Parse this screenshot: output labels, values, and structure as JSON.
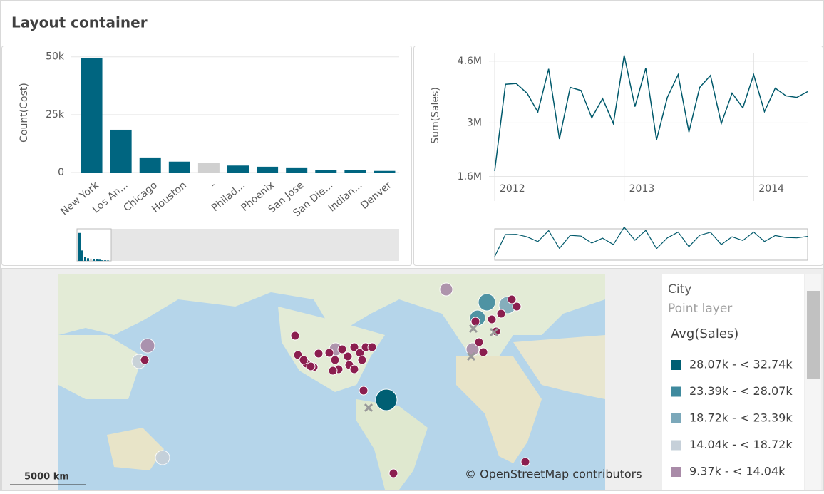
{
  "title": "Layout container",
  "chart_data": [
    {
      "type": "bar",
      "y_label": "Count(Cost)",
      "categories": [
        "New York",
        "Los An...",
        "Chicago",
        "Houston",
        "-",
        "Philad...",
        "Phoenix",
        "San Jose",
        "San Die...",
        "Indian...",
        "Denver"
      ],
      "values": [
        49500,
        18500,
        6500,
        4700,
        4000,
        3000,
        2500,
        2200,
        1100,
        1000,
        700
      ],
      "colors": [
        "#006580",
        "#006580",
        "#006580",
        "#006580",
        "#d0d0d0",
        "#006580",
        "#006580",
        "#006580",
        "#006580",
        "#006580",
        "#006580"
      ],
      "ylim": [
        0,
        53000
      ],
      "yticks": [
        0,
        {
          "value": 25000,
          "label": "25k"
        },
        {
          "value": 50000,
          "label": "50k"
        }
      ],
      "grid": true
    },
    {
      "type": "line",
      "y_label": "Sum(Sales)",
      "categories": [
        "2012",
        null,
        null,
        null,
        null,
        null,
        null,
        null,
        null,
        null,
        null,
        null,
        "2013",
        null,
        null,
        null,
        null,
        null,
        null,
        null,
        null,
        null,
        null,
        null,
        "2014",
        null,
        null,
        null,
        null,
        null
      ],
      "values": [
        1750000,
        4000000,
        4020000,
        3770000,
        3280000,
        4400000,
        2580000,
        3920000,
        3840000,
        3130000,
        3630000,
        2980000,
        4750000,
        3420000,
        4420000,
        2560000,
        3660000,
        4250000,
        2760000,
        3920000,
        4230000,
        2980000,
        3770000,
        3390000,
        4250000,
        3290000,
        3900000,
        3700000,
        3660000,
        3810000
      ],
      "color": "#00596b",
      "ylim": [
        1600000,
        4800000
      ],
      "yticks": [
        {
          "value": 1600000,
          "label": "1.6M"
        },
        {
          "value": 3000000,
          "label": "3M"
        },
        {
          "value": 4600000,
          "label": "4.6M"
        }
      ],
      "grid": true
    }
  ],
  "map": {
    "layer_title": "City",
    "layer_type": "Point layer",
    "legend": {
      "title": "Avg(Sales)",
      "items": [
        {
          "label": "28.07k - < 32.74k",
          "color": "#005f73"
        },
        {
          "label": "23.39k - < 28.07k",
          "color": "#3f8a9e"
        },
        {
          "label": "18.72k - < 23.39k",
          "color": "#7ba8ba"
        },
        {
          "label": "14.04k - < 18.72k",
          "color": "#c6d0d9"
        },
        {
          "label": "9.37k - < 14.04k",
          "color": "#a98ba8"
        }
      ]
    },
    "scale": "5000 km",
    "attribution": "© OpenStreetMap contributors"
  }
}
